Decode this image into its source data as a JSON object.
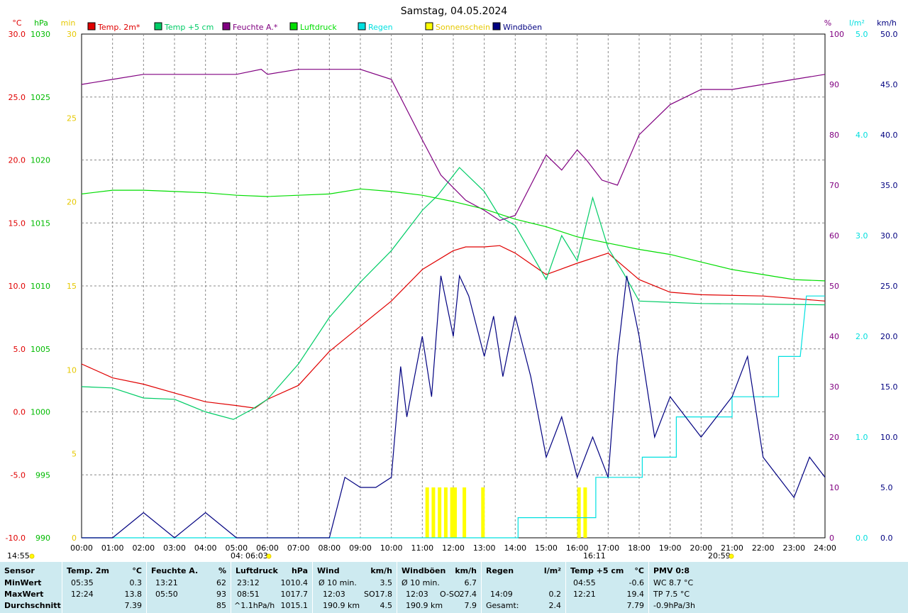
{
  "title": "Samstag, 04.05.2024",
  "legend": [
    {
      "label": "Temp. 2m*",
      "color": "#e00000"
    },
    {
      "label": "Temp +5 cm",
      "color": "#00cc66"
    },
    {
      "label": "Feuchte A.*",
      "color": "#800080"
    },
    {
      "label": "Luftdruck",
      "color": "#00dd00"
    },
    {
      "label": "Regen",
      "color": "#00e0e0"
    },
    {
      "label": "Sonnenschein",
      "color": "#ffff00"
    },
    {
      "label": "Windböen",
      "color": "#000080"
    }
  ],
  "axes": {
    "temp": {
      "unit": "°C",
      "ticks": [
        "30.0",
        "25.0",
        "20.0",
        "15.0",
        "10.0",
        "5.0",
        "0.0",
        "-5.0",
        "-10.0"
      ]
    },
    "pressure": {
      "unit": "hPa",
      "ticks": [
        "1030",
        "1025",
        "1020",
        "1015",
        "1010",
        "1005",
        "1000",
        "995",
        "990"
      ]
    },
    "sun": {
      "unit": "min",
      "ticks": [
        "30",
        "25",
        "20",
        "15",
        "10",
        "5",
        "0"
      ]
    },
    "humidity": {
      "unit": "%",
      "ticks": [
        "100",
        "90",
        "80",
        "70",
        "60",
        "50",
        "40",
        "30",
        "20",
        "10",
        "0"
      ]
    },
    "rain": {
      "unit": "l/m²",
      "ticks": [
        "5.0",
        "4.0",
        "3.0",
        "2.0",
        "1.0",
        "0.0"
      ]
    },
    "wind": {
      "unit": "km/h",
      "ticks": [
        "50.0",
        "45.0",
        "40.0",
        "35.0",
        "30.0",
        "25.0",
        "20.0",
        "15.0",
        "10.0",
        "5.0",
        "0.0"
      ]
    },
    "time_ticks": [
      "00:00",
      "01:00",
      "02:00",
      "03:00",
      "04:00",
      "05:00",
      "06:00",
      "07:00",
      "08:00",
      "09:00",
      "10:00",
      "11:00",
      "12:00",
      "13:00",
      "14:00",
      "15:00",
      "16:00",
      "17:00",
      "18:00",
      "19:00",
      "20:00",
      "21:00",
      "22:00",
      "23:00",
      "24:00"
    ]
  },
  "markers": {
    "sunrise_left": "14:55",
    "moon": "04:",
    "sunrise": "06:03",
    "moon_set": "16:11",
    "sunset": "20:59"
  },
  "chart_data": {
    "type": "line",
    "title": "Samstag, 04.05.2024",
    "x_range": [
      "00:00",
      "24:00"
    ],
    "series": [
      {
        "name": "Temp. 2m*",
        "axis": "temp",
        "x": [
          0,
          1,
          2,
          3,
          4,
          5,
          5.6,
          6,
          7,
          8,
          9,
          10,
          11,
          12,
          12.4,
          13,
          13.5,
          14,
          15,
          16,
          17,
          18,
          19,
          20,
          22,
          24
        ],
        "values": [
          3.8,
          2.7,
          2.2,
          1.5,
          0.8,
          0.5,
          0.3,
          1.0,
          2.1,
          4.8,
          6.8,
          8.8,
          11.3,
          12.8,
          13.1,
          13.1,
          13.2,
          12.6,
          10.9,
          11.8,
          12.6,
          10.5,
          9.5,
          9.3,
          9.2,
          8.8
        ]
      },
      {
        "name": "Temp +5 cm",
        "axis": "temp",
        "x": [
          0,
          1,
          2,
          3,
          4,
          4.9,
          5.5,
          6,
          7,
          8,
          9,
          10,
          11,
          11.5,
          12.2,
          13,
          13.5,
          14,
          15,
          15.5,
          16,
          16.5,
          17,
          17.5,
          18,
          19,
          20,
          24
        ],
        "values": [
          2.0,
          1.9,
          1.1,
          1.0,
          0.0,
          -0.6,
          0.2,
          1.0,
          3.8,
          7.5,
          10.3,
          12.8,
          16.0,
          17.2,
          19.4,
          17.5,
          15.5,
          14.8,
          10.5,
          14.0,
          12.0,
          17.0,
          13.0,
          11.0,
          8.8,
          8.7,
          8.6,
          8.5
        ]
      },
      {
        "name": "Feuchte A.*",
        "axis": "humidity",
        "x": [
          0,
          1,
          2,
          3,
          4,
          5,
          5.8,
          6,
          7,
          8,
          9,
          10,
          11,
          11.6,
          12.4,
          13,
          13.5,
          14,
          14.5,
          15,
          15.5,
          16,
          16.3,
          16.8,
          17.3,
          18,
          19,
          20,
          21,
          22,
          23,
          24
        ],
        "values": [
          90,
          91,
          92,
          92,
          92,
          92,
          93,
          92,
          93,
          93,
          93,
          91,
          79,
          72,
          67,
          65,
          63,
          64,
          70,
          76,
          73,
          77,
          75,
          71,
          70,
          80,
          86,
          89,
          89,
          90,
          91,
          92
        ]
      },
      {
        "name": "Luftdruck",
        "axis": "pressure",
        "x": [
          0,
          1,
          2,
          3,
          4,
          5,
          6,
          7,
          8,
          9,
          10,
          11,
          12,
          13,
          14,
          15,
          16,
          17,
          18,
          19,
          20,
          21,
          22,
          23,
          24
        ],
        "values": [
          1017.3,
          1017.6,
          1017.6,
          1017.5,
          1017.4,
          1017.2,
          1017.1,
          1017.2,
          1017.3,
          1017.7,
          1017.5,
          1017.2,
          1016.7,
          1016.1,
          1015.3,
          1014.7,
          1013.9,
          1013.4,
          1012.9,
          1012.5,
          1011.9,
          1011.3,
          1010.9,
          1010.5,
          1010.4
        ]
      },
      {
        "name": "Regen",
        "axis": "rain",
        "x": [
          0,
          14.09,
          14.09,
          16.6,
          16.6,
          18.1,
          18.1,
          19.2,
          19.2,
          21.0,
          21.0,
          22.5,
          22.5,
          23.2,
          23.4,
          24
        ],
        "values": [
          0,
          0,
          0.2,
          0.2,
          0.6,
          0.6,
          0.8,
          0.8,
          1.2,
          1.2,
          1.4,
          1.4,
          1.8,
          1.8,
          2.4,
          2.4
        ]
      },
      {
        "name": "Windböen",
        "axis": "wind",
        "x": [
          0,
          1,
          2,
          3,
          4,
          5,
          6,
          7,
          8,
          8.5,
          9,
          9.5,
          10,
          10.3,
          10.5,
          11,
          11.3,
          11.6,
          12,
          12.2,
          12.5,
          13,
          13.3,
          13.6,
          14,
          14.5,
          15,
          15.5,
          16,
          16.5,
          17,
          17.3,
          17.6,
          18,
          18.5,
          19,
          19.5,
          20,
          20.5,
          21,
          21.5,
          22,
          22.5,
          23,
          23.5,
          24
        ],
        "values": [
          0,
          0,
          2.5,
          0,
          2.5,
          0,
          0,
          0,
          0,
          6,
          5,
          5,
          6,
          17,
          12,
          20,
          14,
          26,
          20,
          26,
          24,
          18,
          22,
          16,
          22,
          16,
          8,
          12,
          6,
          10,
          6,
          18,
          26,
          20,
          10,
          14,
          12,
          10,
          12,
          14,
          18,
          8,
          6,
          4,
          8,
          6
        ]
      }
    ],
    "bars": {
      "name": "Sonnenschein",
      "axis": "sun",
      "x": [
        11.1,
        11.3,
        11.5,
        11.7,
        11.9,
        12.0,
        12.3,
        12.9,
        16.0,
        16.2
      ],
      "values": [
        3,
        3,
        3,
        3,
        3,
        3,
        3,
        3,
        3,
        3
      ]
    }
  },
  "footer": {
    "sensor": {
      "header": "Sensor",
      "rows": [
        "MinWert",
        "MaxWert",
        "Durchschnitt"
      ]
    },
    "temp2m": {
      "header": "Temp. 2m",
      "unit": "°C",
      "rows": [
        [
          "05:35",
          "0.3"
        ],
        [
          "12:24",
          "13.8"
        ],
        [
          "",
          "7.39"
        ]
      ]
    },
    "humidity": {
      "header": "Feuchte A.",
      "unit": "%",
      "rows": [
        [
          "13:21",
          "62"
        ],
        [
          "05:50",
          "93"
        ],
        [
          "",
          "85"
        ]
      ]
    },
    "pressure": {
      "header": "Luftdruck",
      "unit": "hPa",
      "rows": [
        [
          "23:12",
          "1010.4"
        ],
        [
          "08:51",
          "1017.7"
        ],
        [
          "^1.1hPa/h",
          "1015.1"
        ]
      ]
    },
    "wind": {
      "header": "Wind",
      "unit": "km/h",
      "rows": [
        [
          "Ø 10 min.",
          "",
          "3.5"
        ],
        [
          "12:03",
          "SO",
          "17.8"
        ],
        [
          "190.9 km",
          "",
          "4.5"
        ]
      ]
    },
    "gusts": {
      "header": "Windböen",
      "unit": "km/h",
      "rows": [
        [
          "Ø 10 min.",
          "",
          "6.7"
        ],
        [
          "12:03",
          "O-SO",
          "27.4"
        ],
        [
          "190.9 km",
          "",
          "7.9"
        ]
      ]
    },
    "rain": {
      "header": "Regen",
      "unit": "l/m²",
      "rows": [
        [
          "",
          ""
        ],
        [
          "14:09",
          "0.2"
        ],
        [
          "Gesamt:",
          "2.4"
        ]
      ]
    },
    "temp5cm": {
      "header": "Temp +5 cm",
      "unit": "°C",
      "rows": [
        [
          "04:55",
          "-0.6"
        ],
        [
          "12:21",
          "19.4"
        ],
        [
          "",
          "7.79"
        ]
      ]
    },
    "pmv": {
      "header": "PMV 0:8",
      "rows": [
        "WC 8.7 °C",
        "TP 7.5 °C",
        "-0.9hPa/3h"
      ]
    }
  }
}
